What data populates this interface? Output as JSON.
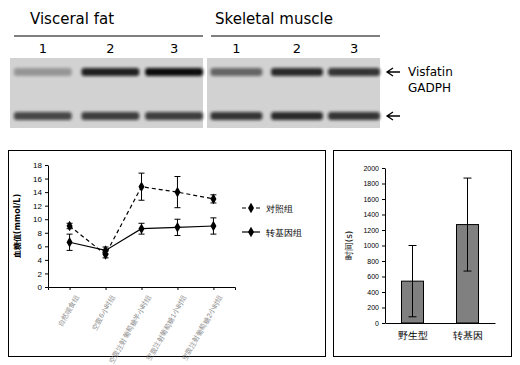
{
  "blot": {
    "panels": [
      {
        "title": "Visceral fat",
        "lanes": [
          "1",
          "2",
          "3"
        ],
        "intensity": [
          [
            0.3,
            0.9,
            1.0
          ],
          [
            0.7,
            0.75,
            0.75
          ]
        ]
      },
      {
        "title": "Skeletal muscle",
        "lanes": [
          "1",
          "2",
          "3"
        ],
        "intensity": [
          [
            0.55,
            0.85,
            0.8
          ],
          [
            0.8,
            0.85,
            0.8
          ]
        ]
      }
    ],
    "markers": [
      {
        "label": "Visfatin"
      },
      {
        "label": "GADPH"
      }
    ]
  },
  "chart_data": [
    {
      "type": "line",
      "y_label": "血糖值(mmol/L)",
      "categories": [
        "自然喂食组",
        "空腹6小时组",
        "空腹注射葡萄糖半小时组",
        "空腹注射葡萄糖1小时组",
        "空腹注射葡萄糖2小时组"
      ],
      "series": [
        {
          "name": "对照组",
          "color": "#000000",
          "line_style": "dashed",
          "marker": "diamond",
          "values": [
            9.0,
            4.8,
            14.8,
            14.0,
            13.0
          ],
          "errors": [
            0.4,
            0.5,
            2.0,
            2.3,
            0.6
          ]
        },
        {
          "name": "转基因组",
          "color": "#000000",
          "line_style": "solid",
          "marker": "diamond",
          "values": [
            6.6,
            5.4,
            8.6,
            8.8,
            9.0
          ],
          "errors": [
            1.2,
            0.5,
            0.8,
            1.2,
            1.2
          ]
        }
      ],
      "ylim": [
        0,
        18
      ],
      "yticks": [
        0,
        2,
        4,
        6,
        8,
        10,
        12,
        14,
        16,
        18
      ],
      "legend": "right"
    },
    {
      "type": "bar",
      "y_label": "时间(s)",
      "categories": [
        "野生型",
        "转基因"
      ],
      "values": [
        540,
        1270
      ],
      "errors": [
        460,
        600
      ],
      "color": "#808080",
      "ylim": [
        0,
        2000
      ],
      "yticks": [
        0,
        200,
        400,
        600,
        800,
        1000,
        1200,
        1400,
        1600,
        1800,
        2000
      ]
    }
  ]
}
